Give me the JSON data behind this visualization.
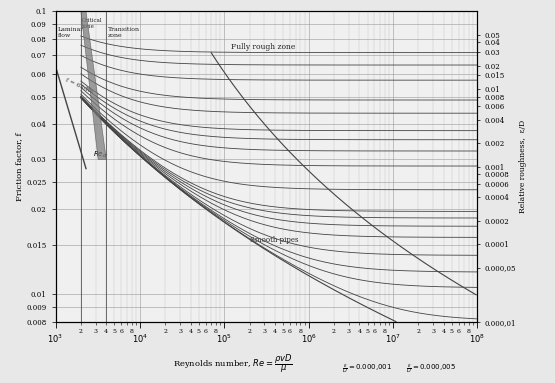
{
  "Re_min": 1000,
  "Re_max": 100000000.0,
  "f_min": 0.008,
  "f_max": 0.1,
  "roughness_values": [
    0.05,
    0.04,
    0.03,
    0.02,
    0.015,
    0.01,
    0.008,
    0.006,
    0.004,
    0.002,
    0.001,
    0.0008,
    0.0006,
    0.0004,
    0.0002,
    0.0001,
    5e-05,
    1e-05
  ],
  "right_axis_ticks": [
    0.05,
    0.04,
    0.03,
    0.02,
    0.015,
    0.01,
    0.008,
    0.006,
    0.004,
    0.002,
    0.001,
    0.0008,
    0.0006,
    0.0004,
    0.0002,
    0.0001,
    5e-05,
    1e-05
  ],
  "right_axis_labels": [
    "0.05",
    "0.04",
    "0.03",
    "0.02",
    "0.015",
    "0.01",
    "0.008",
    "0.006",
    "0.004",
    "0.002",
    "0.001",
    "0.0008",
    "0.0006",
    "0.0004",
    "0.0002",
    "0.0001",
    "0.000,05",
    "0.000,01"
  ],
  "yticks": [
    0.008,
    0.009,
    0.01,
    0.015,
    0.02,
    0.025,
    0.03,
    0.04,
    0.05,
    0.06,
    0.07,
    0.08,
    0.09,
    0.1
  ],
  "ytick_labels": [
    "0.008",
    "0.009",
    "0.01",
    "0.015",
    "0.02",
    "0.025",
    "0.03",
    "0.04",
    "0.05",
    "0.06",
    "0.07",
    "0.08",
    "0.09",
    "0.1"
  ],
  "bg_color": "#e8e8e8",
  "line_color": "#444444",
  "ylabel": "Friction factor, f",
  "ylabel_right": "Relative roughness,  ε/D",
  "xlabel": "Reynolds number, Re =",
  "laminar_label": "Laminar\nflow",
  "critical_label": "Critical\nzone",
  "transition_label": "Transition\nzone",
  "fully_rough_label": "Fully rough zone",
  "smooth_pipe_label": "Smooth pipes",
  "figsize": [
    5.55,
    3.83
  ],
  "dpi": 100
}
